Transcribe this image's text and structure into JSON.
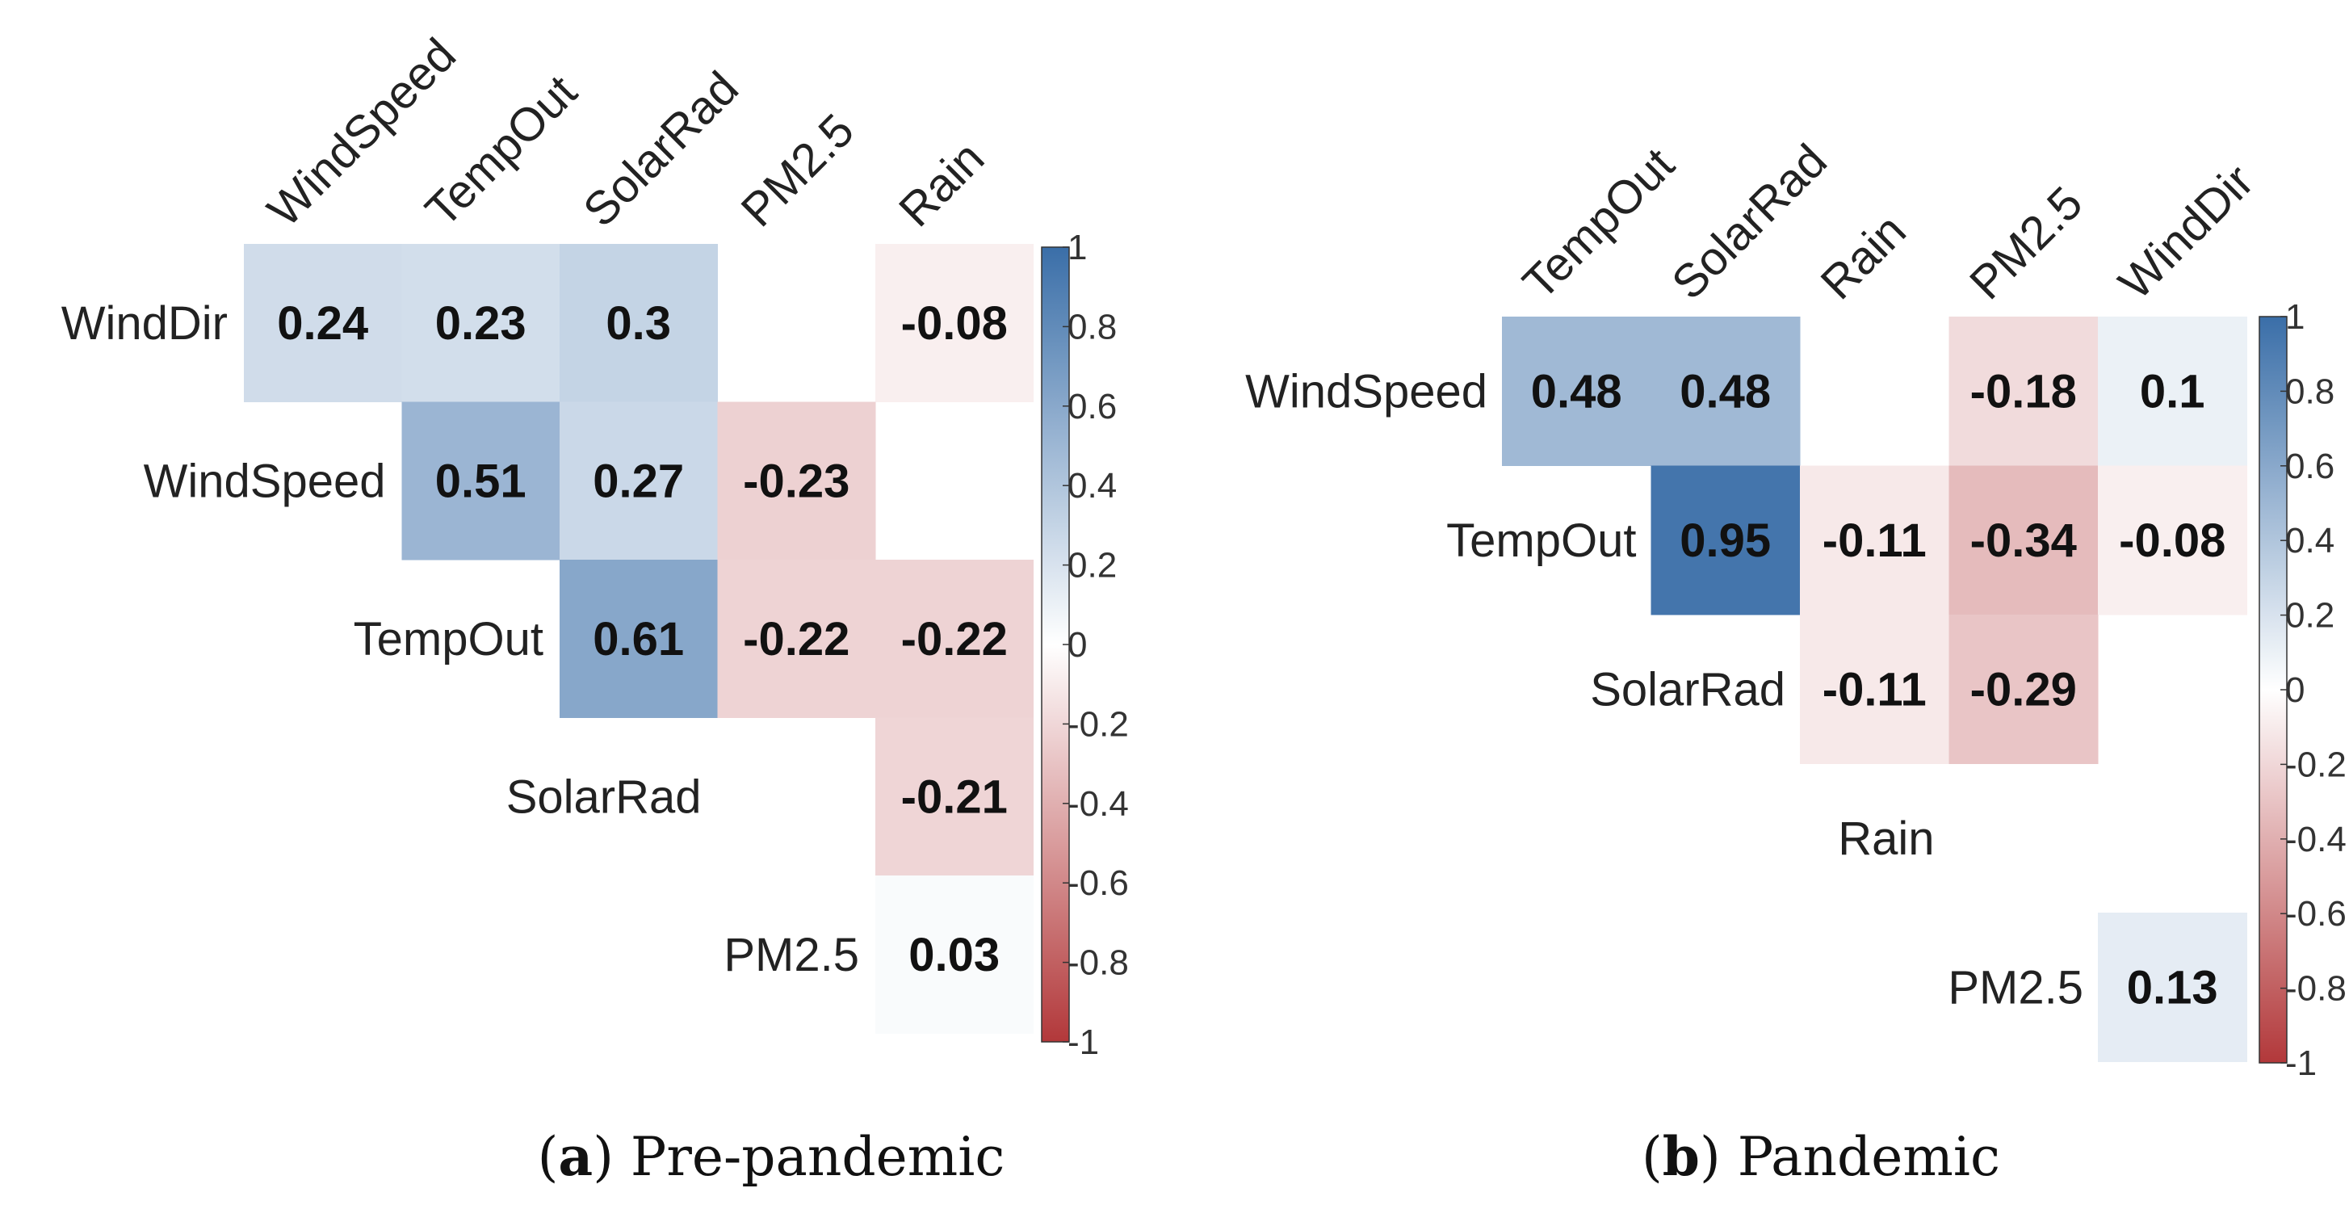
{
  "colors": {
    "positive": "#3A6EA8",
    "neutral": "#FFFFFF",
    "negative": "#B2383A"
  },
  "chart_data": [
    {
      "type": "heatmap",
      "caption": {
        "letter": "a",
        "text": "Pre-pandemic"
      },
      "columns": [
        "WindSpeed",
        "TempOut",
        "SolarRad",
        "PM2.5",
        "Rain"
      ],
      "rows": [
        "WindDir",
        "WindSpeed",
        "TempOut",
        "SolarRad",
        "PM2.5"
      ],
      "cells": [
        {
          "row": 0,
          "col": 0,
          "value": 0.24,
          "label": "0.24"
        },
        {
          "row": 0,
          "col": 1,
          "value": 0.23,
          "label": "0.23"
        },
        {
          "row": 0,
          "col": 2,
          "value": 0.3,
          "label": "0.3"
        },
        {
          "row": 0,
          "col": 4,
          "value": -0.08,
          "label": "-0.08"
        },
        {
          "row": 1,
          "col": 1,
          "value": 0.51,
          "label": "0.51"
        },
        {
          "row": 1,
          "col": 2,
          "value": 0.27,
          "label": "0.27"
        },
        {
          "row": 1,
          "col": 3,
          "value": -0.23,
          "label": "-0.23"
        },
        {
          "row": 2,
          "col": 2,
          "value": 0.61,
          "label": "0.61"
        },
        {
          "row": 2,
          "col": 3,
          "value": -0.22,
          "label": "-0.22"
        },
        {
          "row": 2,
          "col": 4,
          "value": -0.22,
          "label": "-0.22"
        },
        {
          "row": 3,
          "col": 4,
          "value": -0.21,
          "label": "-0.21"
        },
        {
          "row": 4,
          "col": 4,
          "value": 0.03,
          "label": "0.03"
        }
      ],
      "colorbar": {
        "range": [
          -1,
          1
        ],
        "ticks": [
          "1",
          "0.8",
          "0.6",
          "0.4",
          "0.2",
          "0",
          "-0.2",
          "-0.4",
          "-0.6",
          "-0.8",
          "-1"
        ]
      }
    },
    {
      "type": "heatmap",
      "caption": {
        "letter": "b",
        "text": "Pandemic"
      },
      "columns": [
        "TempOut",
        "SolarRad",
        "Rain",
        "PM2.5",
        "WindDir"
      ],
      "rows": [
        "WindSpeed",
        "TempOut",
        "SolarRad",
        "Rain",
        "PM2.5"
      ],
      "cells": [
        {
          "row": 0,
          "col": 0,
          "value": 0.48,
          "label": "0.48"
        },
        {
          "row": 0,
          "col": 1,
          "value": 0.48,
          "label": "0.48"
        },
        {
          "row": 0,
          "col": 3,
          "value": -0.18,
          "label": "-0.18"
        },
        {
          "row": 0,
          "col": 4,
          "value": 0.1,
          "label": "0.1"
        },
        {
          "row": 1,
          "col": 1,
          "value": 0.95,
          "label": "0.95"
        },
        {
          "row": 1,
          "col": 2,
          "value": -0.11,
          "label": "-0.11"
        },
        {
          "row": 1,
          "col": 3,
          "value": -0.34,
          "label": "-0.34"
        },
        {
          "row": 1,
          "col": 4,
          "value": -0.08,
          "label": "-0.08"
        },
        {
          "row": 2,
          "col": 2,
          "value": -0.11,
          "label": "-0.11"
        },
        {
          "row": 2,
          "col": 3,
          "value": -0.29,
          "label": "-0.29"
        },
        {
          "row": 4,
          "col": 4,
          "value": 0.13,
          "label": "0.13"
        }
      ],
      "colorbar": {
        "range": [
          -1,
          1
        ],
        "ticks": [
          "1",
          "0.8",
          "0.6",
          "0.4",
          "0.2",
          "0",
          "-0.2",
          "-0.4",
          "-0.6",
          "-0.8",
          "-1"
        ]
      }
    }
  ]
}
